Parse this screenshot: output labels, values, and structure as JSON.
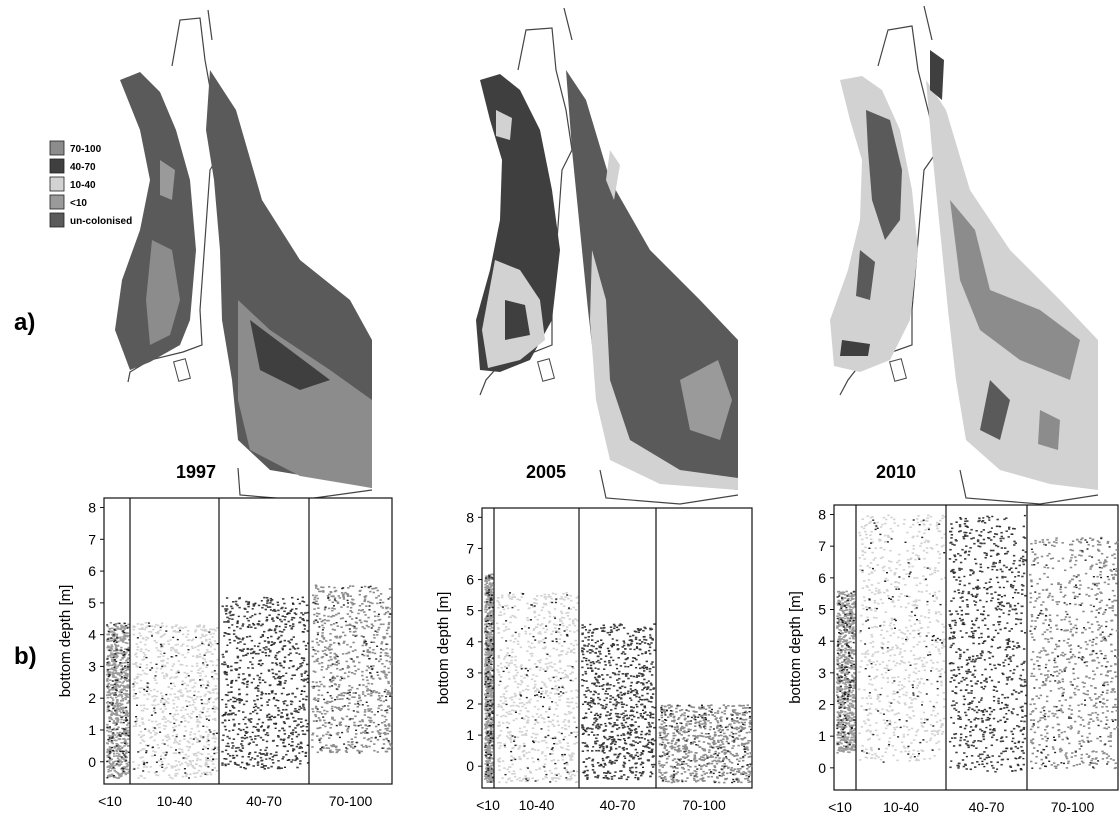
{
  "panels": {
    "a_label": "a)",
    "b_label": "b)"
  },
  "legend": {
    "items": [
      {
        "label": "70-100",
        "color": "#8c8c8c"
      },
      {
        "label": "40-70",
        "color": "#3f3f3f"
      },
      {
        "label": "10-40",
        "color": "#d2d2d2"
      },
      {
        "label": "<10",
        "color": "#9a9a9a"
      },
      {
        "label": "un-colonised",
        "color": "#5a5a5a"
      }
    ]
  },
  "years": [
    "1997",
    "2005",
    "2010"
  ],
  "chart_data": [
    {
      "type": "scatter",
      "title": "1997",
      "xlabel": "",
      "ylabel": "bottom depth [m]",
      "ylim": [
        -0.7,
        8.3
      ],
      "yticks": [
        0,
        1,
        2,
        3,
        4,
        5,
        6,
        7,
        8
      ],
      "x_categories": [
        "<10",
        "10-40",
        "40-70",
        "70-100"
      ],
      "class_colors": {
        "<10": "#9a9a9a",
        "10-40": "#d2d2d2",
        "40-70": "#3f3f3f",
        "70-100": "#8c8c8c"
      },
      "point_clouds": [
        {
          "class": "<10",
          "depth_min": -0.5,
          "depth_max": 4.4
        },
        {
          "class": "10-40",
          "depth_min": -0.5,
          "depth_max": 4.4
        },
        {
          "class": "40-70",
          "depth_min": -0.2,
          "depth_max": 5.2
        },
        {
          "class": "70-100",
          "depth_min": 0.3,
          "depth_max": 5.6
        }
      ]
    },
    {
      "type": "scatter",
      "title": "2005",
      "xlabel": "",
      "ylabel": "bottom depth [m]",
      "ylim": [
        -0.7,
        8.3
      ],
      "yticks": [
        0,
        1,
        2,
        3,
        4,
        5,
        6,
        7,
        8
      ],
      "x_categories": [
        "<10",
        "10-40",
        "40-70",
        "70-100"
      ],
      "class_colors": {
        "<10": "#9a9a9a",
        "10-40": "#d2d2d2",
        "40-70": "#3f3f3f",
        "70-100": "#8c8c8c"
      },
      "point_clouds": [
        {
          "class": "<10",
          "depth_min": -0.5,
          "depth_max": 6.2
        },
        {
          "class": "10-40",
          "depth_min": -0.5,
          "depth_max": 5.6
        },
        {
          "class": "40-70",
          "depth_min": -0.4,
          "depth_max": 4.6
        },
        {
          "class": "70-100",
          "depth_min": -0.5,
          "depth_max": 2.0
        }
      ]
    },
    {
      "type": "scatter",
      "title": "2010",
      "xlabel": "",
      "ylabel": "bottom depth [m]",
      "ylim": [
        -0.7,
        8.3
      ],
      "yticks": [
        0,
        1,
        2,
        3,
        4,
        5,
        6,
        7,
        8
      ],
      "x_categories": [
        "<10",
        "10-40",
        "40-70",
        "70-100"
      ],
      "class_colors": {
        "<10": "#9a9a9a",
        "10-40": "#d2d2d2",
        "40-70": "#3f3f3f",
        "70-100": "#8c8c8c"
      },
      "point_clouds": [
        {
          "class": "<10",
          "depth_min": 0.5,
          "depth_max": 5.6
        },
        {
          "class": "10-40",
          "depth_min": 0.2,
          "depth_max": 8.0
        },
        {
          "class": "40-70",
          "depth_min": -0.1,
          "depth_max": 8.0
        },
        {
          "class": "70-100",
          "depth_min": 0.0,
          "depth_max": 7.3
        }
      ]
    }
  ]
}
